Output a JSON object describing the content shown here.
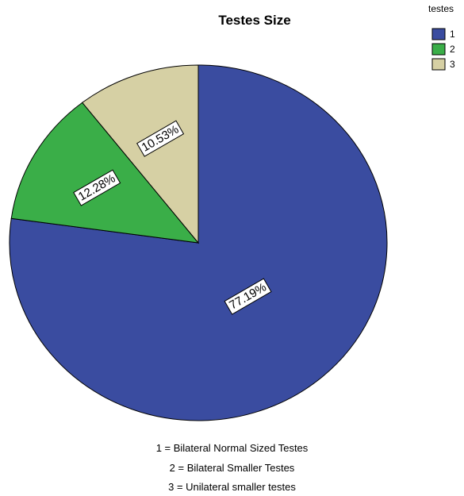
{
  "chart_data": {
    "type": "pie",
    "title": "Testes Size",
    "legend": {
      "title": "testes",
      "position": "top-right"
    },
    "categories": [
      "1",
      "2",
      "3"
    ],
    "values": [
      77.19,
      12.28,
      10.53
    ],
    "labels": [
      "77.19%",
      "12.28%",
      "10.53%"
    ],
    "colors": [
      "#3a4ca0",
      "#3aae48",
      "#d6d0a4"
    ]
  },
  "notes": [
    "1 = Bilateral Normal Sized Testes",
    "2 = Bilateral Smaller Testes",
    "3 = Unilateral smaller testes"
  ]
}
